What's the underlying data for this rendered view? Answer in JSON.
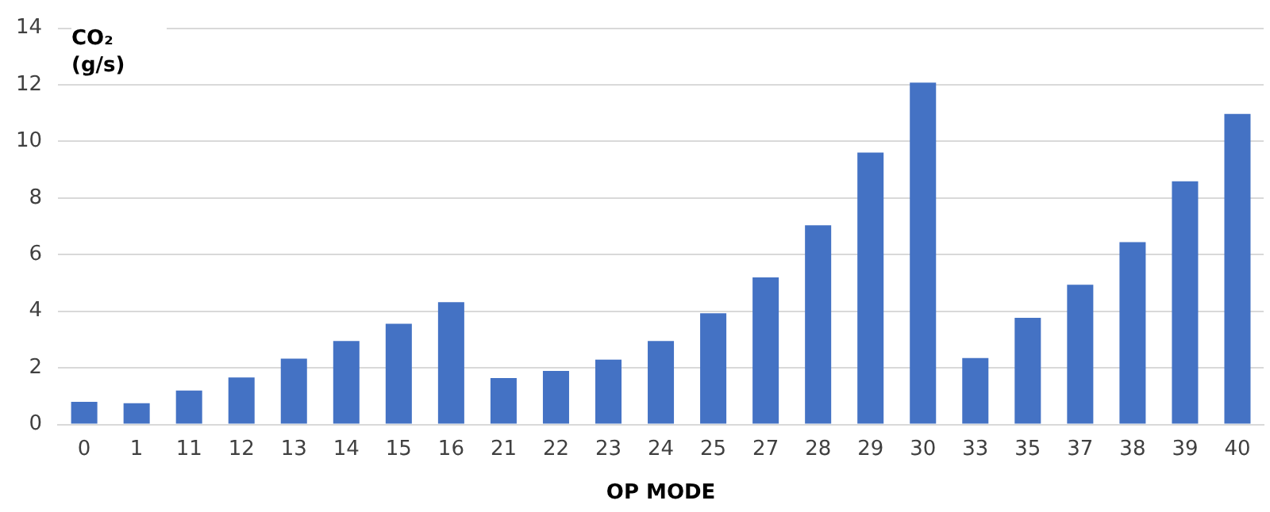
{
  "chart_data": {
    "type": "bar",
    "xlabel": "OP MODE",
    "ylabel": "CO₂ (g/s)",
    "categories": [
      "0",
      "1",
      "11",
      "12",
      "13",
      "14",
      "15",
      "16",
      "21",
      "22",
      "23",
      "24",
      "25",
      "27",
      "28",
      "29",
      "30",
      "33",
      "35",
      "37",
      "38",
      "39",
      "40"
    ],
    "values": [
      0.8,
      0.75,
      1.2,
      1.66,
      2.33,
      2.95,
      3.56,
      4.32,
      1.64,
      1.89,
      2.29,
      2.95,
      3.93,
      5.2,
      7.04,
      9.61,
      12.08,
      2.35,
      3.77,
      4.94,
      6.44,
      8.59,
      10.97
    ],
    "color": "#4472c4",
    "ylim": [
      0,
      14
    ],
    "yticks": [
      0,
      2,
      4,
      6,
      8,
      10,
      12,
      14
    ],
    "grid": "y",
    "legend": false
  }
}
